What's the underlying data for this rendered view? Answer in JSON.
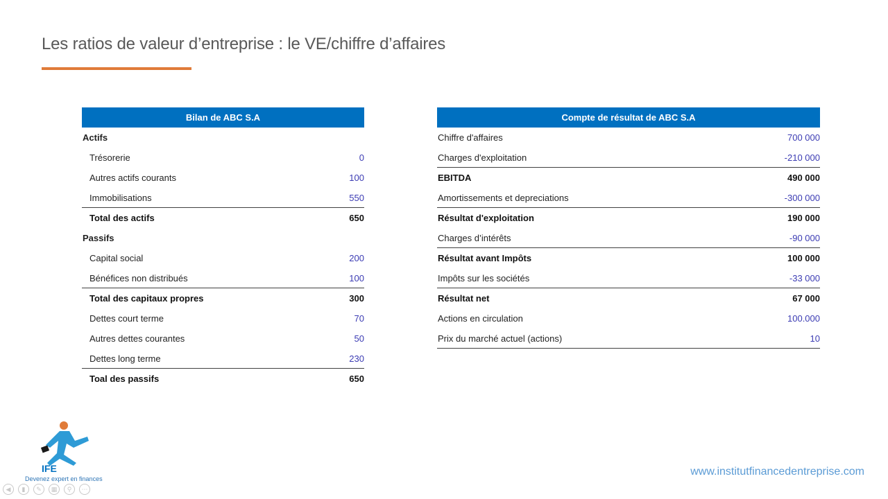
{
  "slide": {
    "title": "Les ratios de valeur d’entreprise : le VE/chiffre d’affaires",
    "accent_color": "#e07b39"
  },
  "balance_sheet": {
    "header": "Bilan de ABC S.A",
    "rows": [
      {
        "label": "Actifs",
        "value": ""
      },
      {
        "label": "Trésorerie",
        "value": "0"
      },
      {
        "label": "Autres actifs courants",
        "value": "100"
      },
      {
        "label": "Immobilisations",
        "value": "550"
      },
      {
        "label": "Total des actifs",
        "value": "650"
      },
      {
        "label": "Passifs",
        "value": ""
      },
      {
        "label": "Capital social",
        "value": "200"
      },
      {
        "label": "Bénéfices non distribués",
        "value": "100"
      },
      {
        "label": "Total des capitaux propres",
        "value": "300"
      },
      {
        "label": "Dettes court terme",
        "value": "70"
      },
      {
        "label": "Autres dettes courantes",
        "value": "50"
      },
      {
        "label": "Dettes long terme",
        "value": "230"
      },
      {
        "label": "Toal des passifs",
        "value": "650"
      }
    ]
  },
  "income_statement": {
    "header": "Compte de résultat de ABC S.A",
    "rows": [
      {
        "label": "Chiffre d'affaires",
        "value": "700 000"
      },
      {
        "label": "Charges d'exploitation",
        "value": "-210 000"
      },
      {
        "label": "EBITDA",
        "value": "490 000"
      },
      {
        "label": "Amortissements et depreciations",
        "value": "-300 000"
      },
      {
        "label": "Résultat d'exploitation",
        "value": "190 000"
      },
      {
        "label": "Charges d’intérêts",
        "value": "-90 000"
      },
      {
        "label": "Résultat avant Impôts",
        "value": "100 000"
      },
      {
        "label": "Impôts sur les sociétés",
        "value": "-33 000"
      },
      {
        "label": "Résultat net",
        "value": "67 000"
      },
      {
        "label": "Actions en circulation",
        "value": "100.000"
      },
      {
        "label": "Prix du marché actuel (actions)",
        "value": "10"
      }
    ]
  },
  "branding": {
    "logo_text": "IFE",
    "tagline": "Devenez expert en finances",
    "website": "www.institutfinancedentreprise.com",
    "header_color": "#0070c0"
  },
  "player_controls": [
    "prev-icon",
    "pages-icon",
    "pen-icon",
    "slides-icon",
    "zoom-icon",
    "more-icon"
  ]
}
